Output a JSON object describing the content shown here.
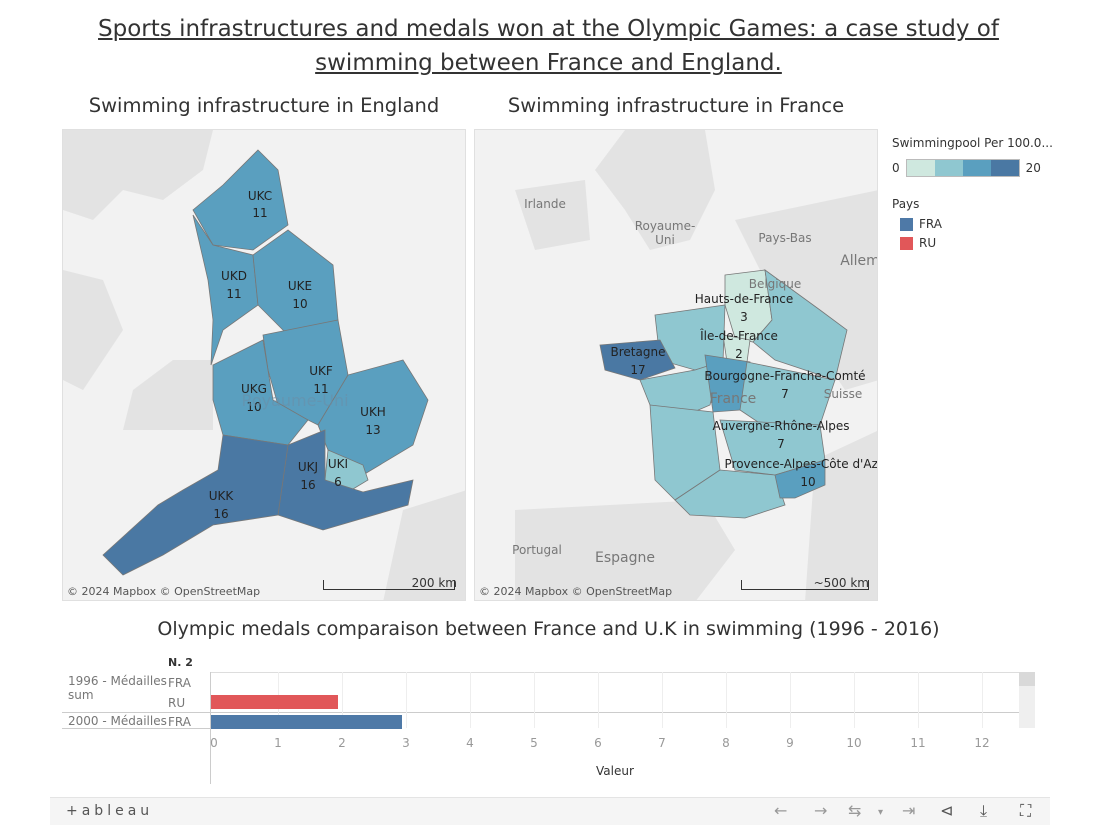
{
  "title": {
    "line1": "Sports infrastructures and medals won at the Olympic Games: a case study of",
    "line2": "swimming between France and England."
  },
  "england_map": {
    "title": "Swimming infrastructure in England",
    "attribution": "© 2024 Mapbox  © OpenStreetMap",
    "scale": "200 km",
    "regions": [
      {
        "code": "UKC",
        "value": "11"
      },
      {
        "code": "UKD",
        "value": "11"
      },
      {
        "code": "UKE",
        "value": "10"
      },
      {
        "code": "UKF",
        "value": "11"
      },
      {
        "code": "UKG",
        "value": "10"
      },
      {
        "code": "UKH",
        "value": "13"
      },
      {
        "code": "UKI",
        "value": "6"
      },
      {
        "code": "UKJ",
        "value": "16"
      },
      {
        "code": "UKK",
        "value": "16"
      }
    ],
    "basemap_label": "Royaume-Uni"
  },
  "france_map": {
    "title": "Swimming infrastructure in France",
    "attribution": "© 2024 Mapbox  © OpenStreetMap",
    "scale": "~500 km",
    "regions": [
      {
        "name": "Hauts-de-France",
        "value": "3"
      },
      {
        "name": "Île-de-France",
        "value": "2"
      },
      {
        "name": "Bretagne",
        "value": "17"
      },
      {
        "name": "Bourgogne-Franche-Comté",
        "value": "7"
      },
      {
        "name": "Auvergne-Rhône-Alpes",
        "value": "7"
      },
      {
        "name": "Provence-Alpes-Côte d'Azu",
        "value": "10"
      }
    ],
    "basemap_labels": {
      "irlande": "Irlande",
      "royaume": "Royaume-",
      "uni": "Uni",
      "pays_bas": "Pays-Bas",
      "belgique": "Belgique",
      "allem": "Allem",
      "france": "France",
      "suisse": "Suisse",
      "portugal": "Portugal",
      "espagne": "Espagne"
    }
  },
  "legend": {
    "title": "Swimmingpool Per 100.0...",
    "min": "0",
    "max": "20",
    "ramp_colors": [
      "#cfe8df",
      "#8fc7d0",
      "#5a9fbf",
      "#4a78a3"
    ],
    "pays_title": "Pays",
    "items": [
      {
        "label": "FRA",
        "color": "#4e79a7"
      },
      {
        "label": "RU",
        "color": "#e15759"
      }
    ]
  },
  "bar_chart": {
    "title": "Olympic medals comparaison between France and U.K in swimming (1996 - 2016)",
    "col_header": "N. 2",
    "axis_title": "Valeur",
    "ticks": [
      "0",
      "1",
      "2",
      "3",
      "4",
      "5",
      "6",
      "7",
      "8",
      "9",
      "10",
      "11",
      "12"
    ],
    "rows": [
      {
        "label_line1": "1996 - Médailles",
        "label_line2": "sum"
      },
      {
        "label_line1": "2000 - Médailles",
        "label_line2": ""
      }
    ],
    "pays": [
      "FRA",
      "RU",
      "FRA"
    ]
  },
  "chart_data": {
    "type": "bar",
    "title": "Olympic medals comparaison between France and U.K in swimming (1996 - 2016)",
    "xlabel": "Valeur",
    "xlim": [
      0,
      12.6
    ],
    "categories": [
      "1996 - Médailles sum / FRA",
      "1996 - Médailles sum / RU",
      "2000 - Médailles / FRA"
    ],
    "values": [
      0,
      2,
      3
    ],
    "colors": [
      "#4e79a7",
      "#e15759",
      "#4e79a7"
    ]
  },
  "toolbar": {
    "logo": "+ableau",
    "undo": "←",
    "redo": "→",
    "revert": "⇥",
    "share": "share",
    "download": "download",
    "fullscreen": "fullscreen"
  }
}
